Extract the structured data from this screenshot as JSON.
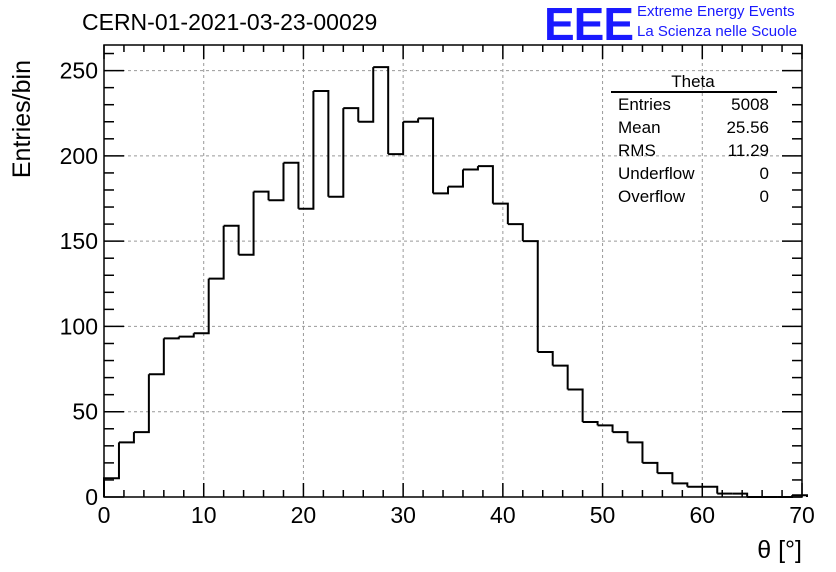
{
  "header": {
    "title": "CERN-01-2021-03-23-00029",
    "logo_text": "EEE",
    "logo_line1": "Extreme Energy Events",
    "logo_line2": "La Scienza nelle Scuole"
  },
  "stats": {
    "title": "Theta",
    "rows": [
      {
        "label": "Entries",
        "value": "5008"
      },
      {
        "label": "Mean",
        "value": "25.56"
      },
      {
        "label": "RMS",
        "value": "11.29"
      },
      {
        "label": "Underflow",
        "value": "0"
      },
      {
        "label": "Overflow",
        "value": "0"
      }
    ]
  },
  "chart_data": {
    "type": "bar",
    "style": "histogram-step",
    "xlabel": "θ [°]",
    "ylabel": "Entries/bin",
    "xlim": [
      0,
      70
    ],
    "ylim": [
      0,
      265
    ],
    "bin_width": 1.5,
    "x_ticks": [
      0,
      10,
      20,
      30,
      40,
      50,
      60,
      70
    ],
    "y_ticks": [
      0,
      50,
      100,
      150,
      200,
      250
    ],
    "grid": true,
    "line_color": "#000000",
    "bins": [
      {
        "x": 0,
        "y": 11
      },
      {
        "x": 1.5,
        "y": 32
      },
      {
        "x": 3,
        "y": 38
      },
      {
        "x": 4.5,
        "y": 72
      },
      {
        "x": 6,
        "y": 93
      },
      {
        "x": 7.5,
        "y": 94
      },
      {
        "x": 9,
        "y": 96
      },
      {
        "x": 10.5,
        "y": 128
      },
      {
        "x": 12,
        "y": 159
      },
      {
        "x": 13.5,
        "y": 142
      },
      {
        "x": 15,
        "y": 179
      },
      {
        "x": 16.5,
        "y": 174
      },
      {
        "x": 18,
        "y": 196
      },
      {
        "x": 19.5,
        "y": 169
      },
      {
        "x": 21,
        "y": 238
      },
      {
        "x": 22.5,
        "y": 176
      },
      {
        "x": 24,
        "y": 228
      },
      {
        "x": 25.5,
        "y": 220
      },
      {
        "x": 27,
        "y": 252
      },
      {
        "x": 28.5,
        "y": 201
      },
      {
        "x": 30,
        "y": 220
      },
      {
        "x": 31.5,
        "y": 222
      },
      {
        "x": 33,
        "y": 178
      },
      {
        "x": 34.5,
        "y": 182
      },
      {
        "x": 36,
        "y": 192
      },
      {
        "x": 37.5,
        "y": 194
      },
      {
        "x": 39,
        "y": 172
      },
      {
        "x": 40.5,
        "y": 160
      },
      {
        "x": 42,
        "y": 150
      },
      {
        "x": 43.5,
        "y": 85
      },
      {
        "x": 45,
        "y": 77
      },
      {
        "x": 46.5,
        "y": 63
      },
      {
        "x": 48,
        "y": 44
      },
      {
        "x": 49.5,
        "y": 42
      },
      {
        "x": 51,
        "y": 38
      },
      {
        "x": 52.5,
        "y": 32
      },
      {
        "x": 54,
        "y": 20
      },
      {
        "x": 55.5,
        "y": 14
      },
      {
        "x": 57,
        "y": 8
      },
      {
        "x": 58.5,
        "y": 6
      },
      {
        "x": 60,
        "y": 6
      },
      {
        "x": 61.5,
        "y": 2
      },
      {
        "x": 63,
        "y": 2
      },
      {
        "x": 64.5,
        "y": 0
      },
      {
        "x": 66,
        "y": 0
      },
      {
        "x": 67.5,
        "y": 0
      },
      {
        "x": 69,
        "y": 1
      }
    ]
  }
}
